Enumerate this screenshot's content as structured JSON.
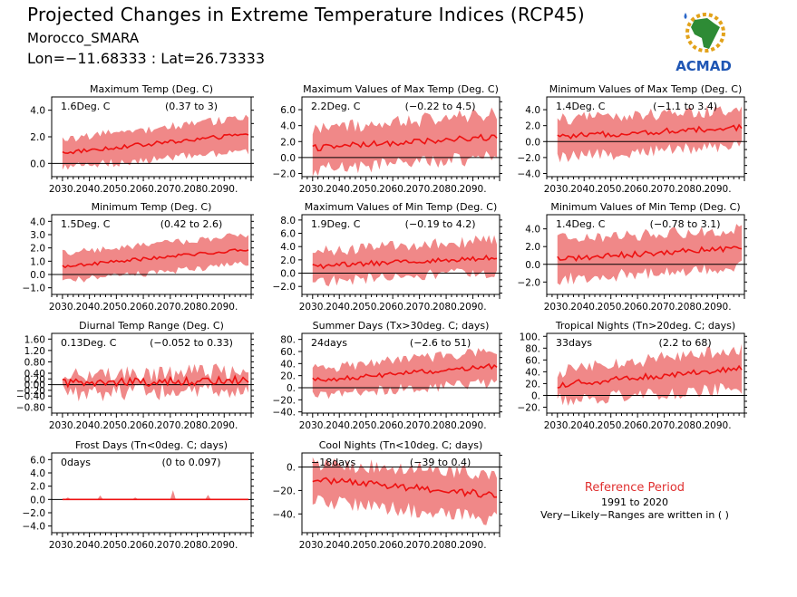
{
  "header": {
    "title": "Projected Changes in Extreme Temperature Indices (RCP45)",
    "subtitle": "Morocco_SMARA",
    "coords": "Lon=−11.68333 : Lat=26.73333"
  },
  "logo": {
    "text": "ACMAD",
    "icon": "africa-logo-icon"
  },
  "reference": {
    "title": "Reference Period",
    "years": "1991 to 2020",
    "note": "Very−Likely−Ranges are written in ( )"
  },
  "colors": {
    "band": "#f08888",
    "line": "#ee1111",
    "zero": "#000000"
  },
  "chart_data": [
    {
      "type": "area",
      "title": "Maximum Temp (Deg. C)",
      "summary": "1.6Deg. C",
      "range": "(0.37 to 3)",
      "ylim": [
        -1.0,
        5.0
      ],
      "yticks": [
        0.0,
        2.0,
        4.0
      ],
      "ytick_labels": [
        "0.0",
        "2.0",
        "4.0"
      ],
      "xlim": [
        2026,
        2100
      ],
      "xticks": [
        2030,
        2040,
        2050,
        2060,
        2070,
        2080,
        2090
      ],
      "xtick_labels": [
        "2030.",
        "2040.",
        "2050.",
        "2060.",
        "2070.",
        "2080.",
        "2090."
      ],
      "x_start": 2030,
      "x_end": 2099,
      "mean_start": 0.8,
      "mean_end": 2.2,
      "lo_start": -0.3,
      "lo_end": 0.9,
      "hi_start": 1.8,
      "hi_end": 3.5,
      "noise": 0.25
    },
    {
      "type": "area",
      "title": "Maximum Values of Max Temp (Deg. C)",
      "summary": "2.2Deg. C",
      "range": "(−0.22 to 4.5)",
      "ylim": [
        -2.4,
        7.6
      ],
      "yticks": [
        -2.0,
        0.0,
        2.0,
        4.0,
        6.0
      ],
      "ytick_labels": [
        "−2.0",
        "0.0",
        "2.0",
        "4.0",
        "6.0"
      ],
      "xlim": [
        2026,
        2100
      ],
      "xticks": [
        2030,
        2040,
        2050,
        2060,
        2070,
        2080,
        2090
      ],
      "xtick_labels": [
        "2030.",
        "2040.",
        "2050.",
        "2060.",
        "2070.",
        "2080.",
        "2090."
      ],
      "x_start": 2030,
      "x_end": 2099,
      "mean_start": 1.2,
      "mean_end": 2.6,
      "lo_start": -1.5,
      "lo_end": 0.0,
      "hi_start": 3.5,
      "hi_end": 5.5,
      "noise": 0.7
    },
    {
      "type": "area",
      "title": "Minimum Values of Max Temp (Deg. C)",
      "summary": "1.4Deg. C",
      "range": "(−1.1 to 3.4)",
      "ylim": [
        -4.4,
        5.6
      ],
      "yticks": [
        -4.0,
        -2.0,
        0.0,
        2.0,
        4.0
      ],
      "ytick_labels": [
        "−4.0",
        "−2.0",
        "0.0",
        "2.0",
        "4.0"
      ],
      "xlim": [
        2026,
        2100
      ],
      "xticks": [
        2030,
        2040,
        2050,
        2060,
        2070,
        2080,
        2090
      ],
      "xtick_labels": [
        "2030.",
        "2040.",
        "2050.",
        "2060.",
        "2070.",
        "2080.",
        "2090."
      ],
      "x_start": 2030,
      "x_end": 2099,
      "mean_start": 0.6,
      "mean_end": 1.8,
      "lo_start": -2.0,
      "lo_end": -0.5,
      "hi_start": 2.8,
      "hi_end": 4.0,
      "noise": 0.6
    },
    {
      "type": "area",
      "title": "Minimum Temp (Deg. C)",
      "summary": "1.5Deg. C",
      "range": "(0.42 to 2.6)",
      "ylim": [
        -1.5,
        4.5
      ],
      "yticks": [
        -1.0,
        0.0,
        1.0,
        2.0,
        3.0,
        4.0
      ],
      "ytick_labels": [
        "−1.0",
        "0.0",
        "1.0",
        "2.0",
        "3.0",
        "4.0"
      ],
      "xlim": [
        2026,
        2100
      ],
      "xticks": [
        2030,
        2040,
        2050,
        2060,
        2070,
        2080,
        2090
      ],
      "xtick_labels": [
        "2030.",
        "2040.",
        "2050.",
        "2060.",
        "2070.",
        "2080.",
        "2090."
      ],
      "x_start": 2030,
      "x_end": 2099,
      "mean_start": 0.6,
      "mean_end": 1.9,
      "lo_start": -0.5,
      "lo_end": 0.8,
      "hi_start": 1.6,
      "hi_end": 3.0,
      "noise": 0.2
    },
    {
      "type": "area",
      "title": "Maximum Values of Min Temp (Deg. C)",
      "summary": "1.9Deg. C",
      "range": "(−0.19 to 4.2)",
      "ylim": [
        -3.2,
        8.8
      ],
      "yticks": [
        -2.0,
        0.0,
        2.0,
        4.0,
        6.0,
        8.0
      ],
      "ytick_labels": [
        "−2.0",
        "0.0",
        "2.0",
        "4.0",
        "6.0",
        "8.0"
      ],
      "xlim": [
        2026,
        2100
      ],
      "xticks": [
        2030,
        2040,
        2050,
        2060,
        2070,
        2080,
        2090
      ],
      "xtick_labels": [
        "2030.",
        "2040.",
        "2050.",
        "2060.",
        "2070.",
        "2080.",
        "2090."
      ],
      "x_start": 2030,
      "x_end": 2099,
      "mean_start": 1.0,
      "mean_end": 2.4,
      "lo_start": -1.2,
      "lo_end": 0.2,
      "hi_start": 3.2,
      "hi_end": 5.0,
      "noise": 0.7
    },
    {
      "type": "area",
      "title": "Minimum Values of Min Temp (Deg. C)",
      "summary": "1.4Deg. C",
      "range": "(−0.78 to 3.1)",
      "ylim": [
        -3.4,
        5.6
      ],
      "yticks": [
        -2.0,
        0.0,
        2.0,
        4.0
      ],
      "ytick_labels": [
        "−2.0",
        "0.0",
        "2.0",
        "4.0"
      ],
      "xlim": [
        2026,
        2100
      ],
      "xticks": [
        2030,
        2040,
        2050,
        2060,
        2070,
        2080,
        2090
      ],
      "xtick_labels": [
        "2030.",
        "2040.",
        "2050.",
        "2060.",
        "2070.",
        "2080.",
        "2090."
      ],
      "x_start": 2030,
      "x_end": 2099,
      "mean_start": 0.6,
      "mean_end": 1.9,
      "lo_start": -1.7,
      "lo_end": -0.3,
      "hi_start": 2.8,
      "hi_end": 4.0,
      "noise": 0.55
    },
    {
      "type": "area",
      "title": "Diurnal Temp Range (Deg. C)",
      "summary": "0.13Deg. C",
      "range": "(−0.052 to 0.33)",
      "ylim": [
        -1.0,
        1.8
      ],
      "yticks": [
        -0.8,
        -0.4,
        -0.2,
        0.0,
        0.2,
        0.4,
        0.8,
        1.2,
        1.6
      ],
      "ytick_labels": [
        "−0.80",
        "−0.40",
        "−0.20",
        "0.00",
        "0.20",
        "0.40",
        "0.80",
        "1.20",
        "1.60"
      ],
      "xlim": [
        2026,
        2100
      ],
      "xticks": [
        2030,
        2040,
        2050,
        2060,
        2070,
        2080,
        2090
      ],
      "xtick_labels": [
        "2030.",
        "2040.",
        "2050.",
        "2060.",
        "2070.",
        "2080.",
        "2090."
      ],
      "x_start": 2030,
      "x_end": 2099,
      "mean_start": 0.05,
      "mean_end": 0.15,
      "lo_start": -0.3,
      "lo_end": -0.2,
      "hi_start": 0.3,
      "hi_end": 0.45,
      "noise": 0.25
    },
    {
      "type": "area",
      "title": "Summer Days (Tx>30deg. C; days)",
      "summary": "24days",
      "range": "(−2.6 to 51)",
      "ylim": [
        -42,
        90
      ],
      "yticks": [
        -40,
        -20,
        0,
        20,
        40,
        60,
        80
      ],
      "ytick_labels": [
        "−40.",
        "−20.",
        "0.",
        "20.",
        "40.",
        "60.",
        "80."
      ],
      "xlim": [
        2026,
        2100
      ],
      "xticks": [
        2030,
        2040,
        2050,
        2060,
        2070,
        2080,
        2090
      ],
      "xtick_labels": [
        "2030.",
        "2040.",
        "2050.",
        "2060.",
        "2070.",
        "2080.",
        "2090."
      ],
      "x_start": 2030,
      "x_end": 2099,
      "mean_start": 12,
      "mean_end": 36,
      "lo_start": -12,
      "lo_end": 8,
      "hi_start": 30,
      "hi_end": 62,
      "noise": 7
    },
    {
      "type": "area",
      "title": "Tropical Nights (Tn>20deg. C; days)",
      "summary": "33days",
      "range": "(2.2 to 68)",
      "ylim": [
        -30,
        105
      ],
      "yticks": [
        -20,
        0,
        20,
        40,
        60,
        80,
        100
      ],
      "ytick_labels": [
        "−20.",
        "0.",
        "20.",
        "40.",
        "60.",
        "80.",
        "100."
      ],
      "xlim": [
        2026,
        2100
      ],
      "xticks": [
        2030,
        2040,
        2050,
        2060,
        2070,
        2080,
        2090
      ],
      "xtick_labels": [
        "2030.",
        "2040.",
        "2050.",
        "2060.",
        "2070.",
        "2080.",
        "2090."
      ],
      "x_start": 2030,
      "x_end": 2099,
      "mean_start": 18,
      "mean_end": 46,
      "lo_start": -8,
      "lo_end": 12,
      "hi_start": 40,
      "hi_end": 80,
      "noise": 9
    },
    {
      "type": "area",
      "title": "Frost Days (Tn<0deg. C; days)",
      "summary": "0days",
      "range": "(0 to 0.097)",
      "ylim": [
        -5.0,
        7.0
      ],
      "yticks": [
        -4.0,
        -2.0,
        0.0,
        2.0,
        4.0,
        6.0
      ],
      "ytick_labels": [
        "−4.0",
        "−2.0",
        "0.0",
        "2.0",
        "4.0",
        "6.0"
      ],
      "xlim": [
        2026,
        2100
      ],
      "xticks": [
        2030,
        2040,
        2050,
        2060,
        2070,
        2080,
        2090
      ],
      "xtick_labels": [
        "2030.",
        "2040.",
        "2050.",
        "2060.",
        "2070.",
        "2080.",
        "2090."
      ],
      "x_start": 2030,
      "x_end": 2099,
      "mean_start": 0,
      "mean_end": 0,
      "lo_start": 0,
      "lo_end": 0,
      "hi_start": 0.05,
      "hi_end": 0.05,
      "noise": 0,
      "spikes": [
        [
          2032,
          0.3
        ],
        [
          2044,
          0.6
        ],
        [
          2057,
          0.3
        ],
        [
          2071,
          1.4
        ],
        [
          2084,
          0.7
        ]
      ]
    },
    {
      "type": "area",
      "title": "Cool Nights (Tn<10deg. C; days)",
      "summary": "−18days",
      "range": "(−39 to 0.4)",
      "ylim": [
        -56,
        12
      ],
      "yticks": [
        -40,
        -20,
        0
      ],
      "ytick_labels": [
        "−40.",
        "−20.",
        "0."
      ],
      "xlim": [
        2026,
        2100
      ],
      "xticks": [
        2030,
        2040,
        2050,
        2060,
        2070,
        2080,
        2090
      ],
      "xtick_labels": [
        "2030.",
        "2040.",
        "2050.",
        "2060.",
        "2070.",
        "2080.",
        "2090."
      ],
      "x_start": 2030,
      "x_end": 2099,
      "mean_start": -10,
      "mean_end": -24,
      "lo_start": -28,
      "lo_end": -45,
      "hi_start": 3,
      "hi_end": -5,
      "noise": 5
    }
  ]
}
